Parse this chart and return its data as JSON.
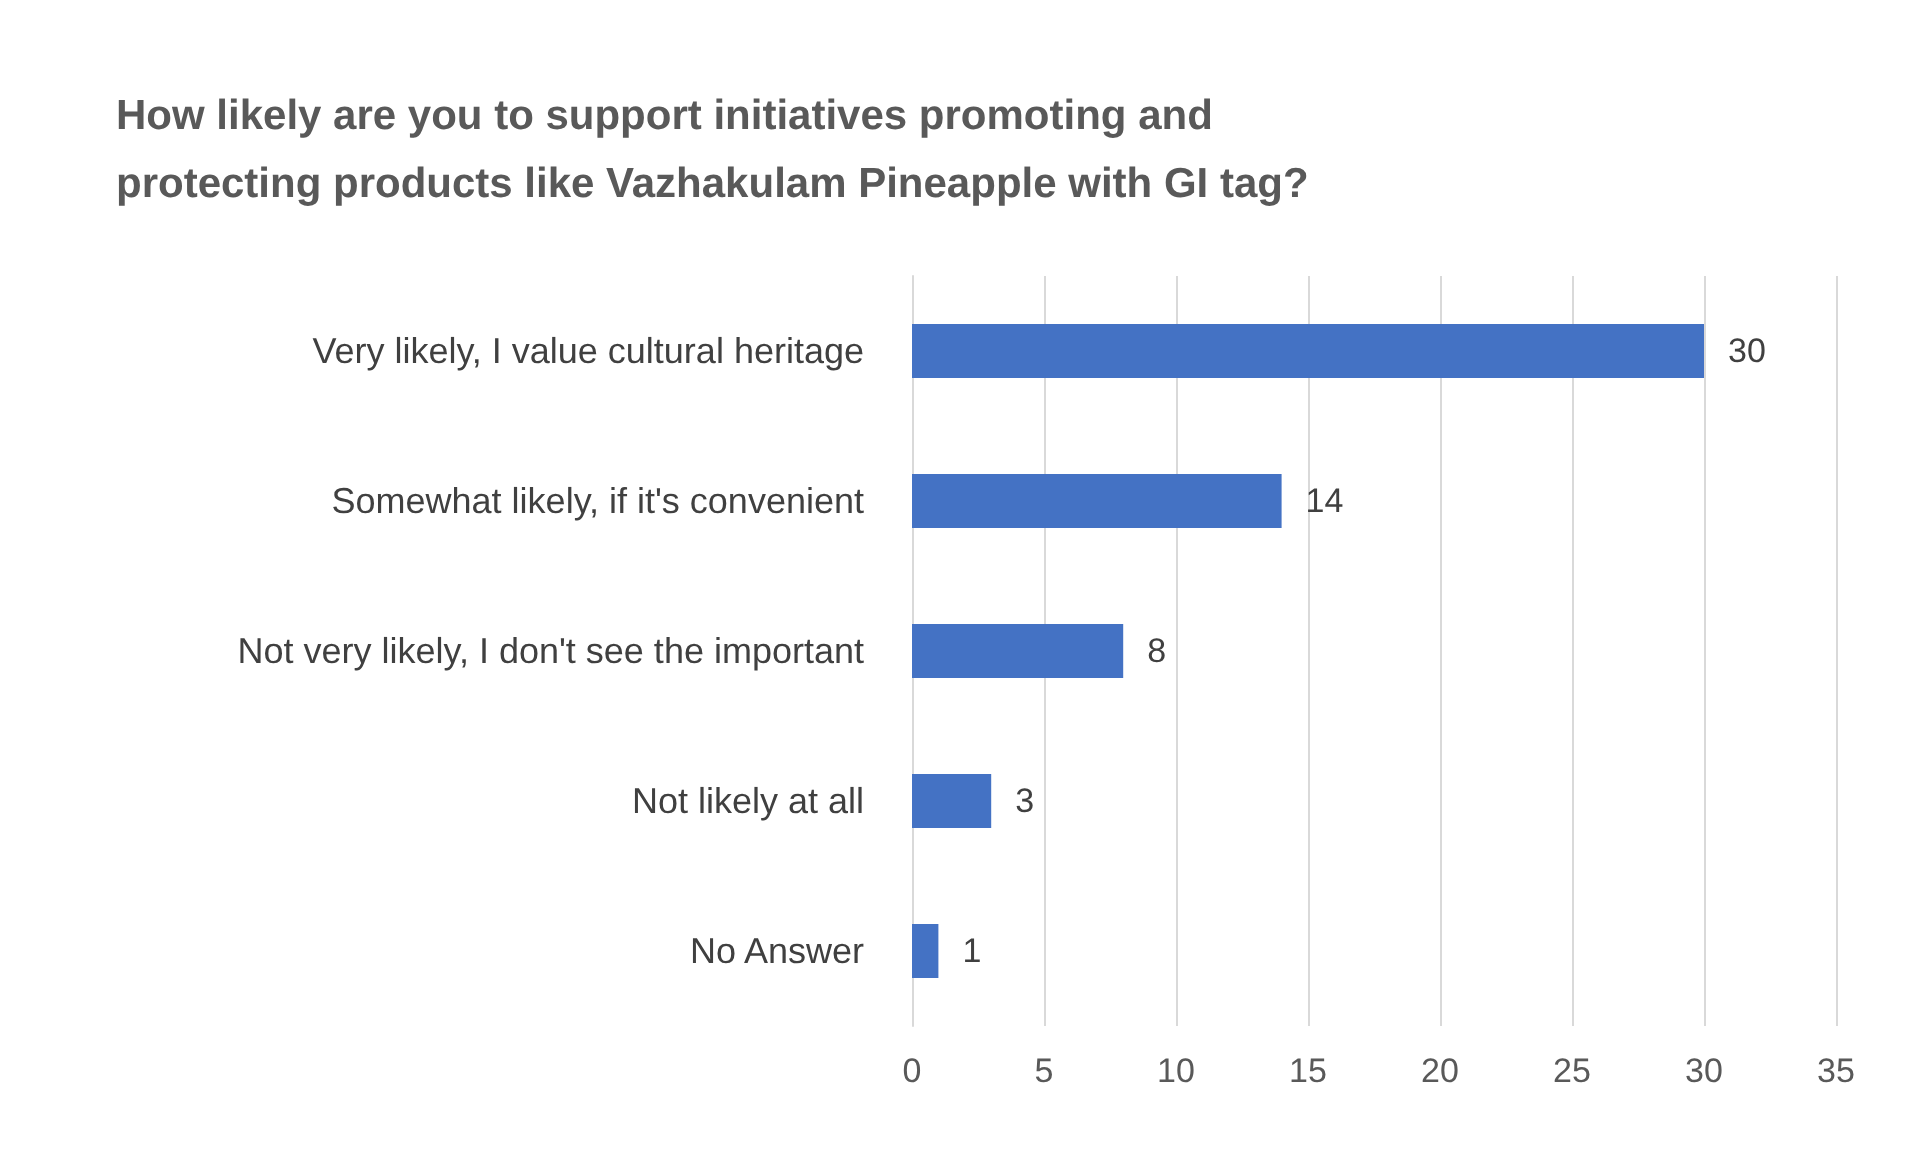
{
  "chart_data": {
    "type": "bar",
    "orientation": "horizontal",
    "title": "How likely are you to support initiatives promoting and\nprotecting products like Vazhakulam Pineapple with GI tag?",
    "categories": [
      "Very likely, I value cultural heritage",
      "Somewhat likely, if it's convenient",
      "Not very likely, I don't see the important",
      "Not likely at all",
      "No Answer"
    ],
    "values": [
      30,
      14,
      8,
      3,
      1
    ],
    "color": "#4472c4",
    "xlim": [
      0,
      35
    ],
    "xticks": [
      0,
      5,
      10,
      15,
      20,
      25,
      30,
      35
    ],
    "grid": "x",
    "data_labels": true
  }
}
